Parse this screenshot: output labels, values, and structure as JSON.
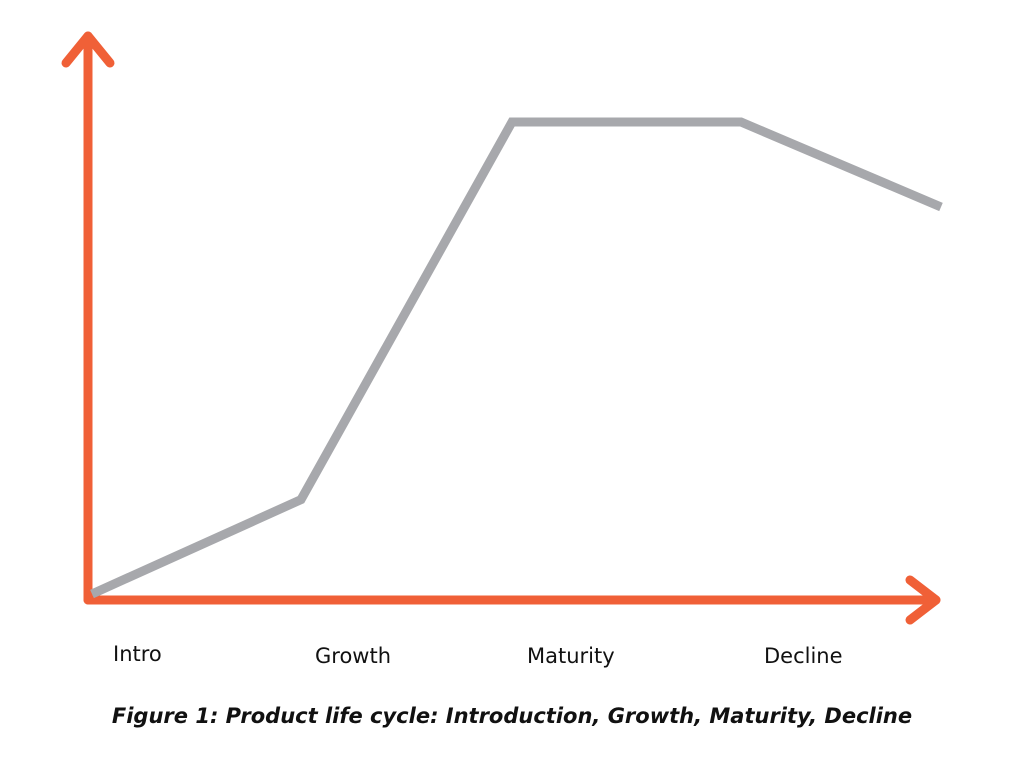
{
  "colors": {
    "axes": "#f06037",
    "curve": "#a7a8ac",
    "text": "#111111"
  },
  "stages": [
    {
      "label": "Intro",
      "level": 0
    },
    {
      "label": "Growth",
      "level": 0.2
    },
    {
      "label": "Maturity",
      "level": 1.0
    },
    {
      "label": "Decline",
      "level": 1.0
    },
    {
      "label": "",
      "level": 0.82
    }
  ],
  "caption": "Figure 1: Product life cycle: Introduction, Growth, Maturity, Decline"
}
